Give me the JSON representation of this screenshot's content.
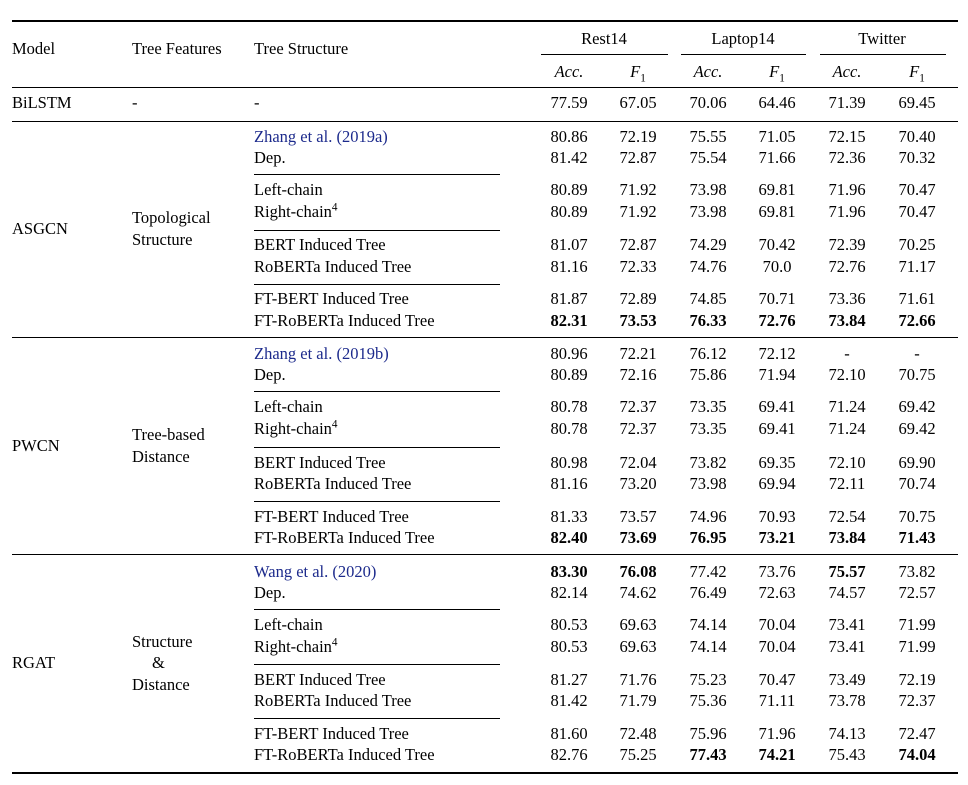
{
  "header": {
    "model": "Model",
    "features": "Tree Features",
    "structure": "Tree Structure",
    "datasets": [
      "Rest14",
      "Laptop14",
      "Twitter"
    ],
    "metrics": [
      "Acc.",
      "F",
      "1"
    ]
  },
  "bilstm": {
    "model": "BiLSTM",
    "features": "-",
    "structure": "-",
    "values": [
      "77.59",
      "67.05",
      "70.06",
      "64.46",
      "71.39",
      "69.45"
    ]
  },
  "groups": [
    {
      "model": "ASGCN",
      "features": [
        "Topological",
        "Structure"
      ],
      "rows": [
        {
          "author": "Zhang et al.",
          "open": " (",
          "year": "2019a",
          "close": ")",
          "values": [
            "80.86",
            "72.19",
            "75.55",
            "71.05",
            "72.15",
            "70.40"
          ]
        },
        {
          "label": "Dep.",
          "values": [
            "81.42",
            "72.87",
            "75.54",
            "71.66",
            "72.36",
            "70.32"
          ]
        },
        {
          "label": "Left-chain",
          "values": [
            "80.89",
            "71.92",
            "73.98",
            "69.81",
            "71.96",
            "70.47"
          ]
        },
        {
          "label": "Right-chain",
          "footnote": "4",
          "values": [
            "80.89",
            "71.92",
            "73.98",
            "69.81",
            "71.96",
            "70.47"
          ]
        },
        {
          "label": "BERT Induced Tree",
          "values": [
            "81.07",
            "72.87",
            "74.29",
            "70.42",
            "72.39",
            "70.25"
          ]
        },
        {
          "label": "RoBERTa Induced Tree",
          "values": [
            "81.16",
            "72.33",
            "74.76",
            "70.0",
            "72.76",
            "71.17"
          ]
        },
        {
          "label": "FT-BERT Induced Tree",
          "values": [
            "81.87",
            "72.89",
            "74.85",
            "70.71",
            "73.36",
            "71.61"
          ]
        },
        {
          "label": "FT-RoBERTa Induced Tree",
          "values": [
            "82.31",
            "73.53",
            "76.33",
            "72.76",
            "73.84",
            "72.66"
          ],
          "bold": [
            true,
            true,
            true,
            true,
            true,
            true
          ]
        }
      ]
    },
    {
      "model": "PWCN",
      "features": [
        "Tree-based",
        "Distance"
      ],
      "rows": [
        {
          "author": "Zhang et al.",
          "open": " (",
          "year": "2019b",
          "close": ")",
          "values": [
            "80.96",
            "72.21",
            "76.12",
            "72.12",
            "-",
            "-"
          ]
        },
        {
          "label": "Dep.",
          "values": [
            "80.89",
            "72.16",
            "75.86",
            "71.94",
            "72.10",
            "70.75"
          ]
        },
        {
          "label": "Left-chain",
          "values": [
            "80.78",
            "72.37",
            "73.35",
            "69.41",
            "71.24",
            "69.42"
          ]
        },
        {
          "label": "Right-chain",
          "footnote": "4",
          "values": [
            "80.78",
            "72.37",
            "73.35",
            "69.41",
            "71.24",
            "69.42"
          ]
        },
        {
          "label": "BERT Induced Tree",
          "values": [
            "80.98",
            "72.04",
            "73.82",
            "69.35",
            "72.10",
            "69.90"
          ]
        },
        {
          "label": "RoBERTa Induced Tree",
          "values": [
            "81.16",
            "73.20",
            "73.98",
            "69.94",
            "72.11",
            "70.74"
          ]
        },
        {
          "label": "FT-BERT Induced Tree",
          "values": [
            "81.33",
            "73.57",
            "74.96",
            "70.93",
            "72.54",
            "70.75"
          ]
        },
        {
          "label": "FT-RoBERTa Induced Tree",
          "values": [
            "82.40",
            "73.69",
            "76.95",
            "73.21",
            "73.84",
            "71.43"
          ],
          "bold": [
            true,
            true,
            true,
            true,
            true,
            true
          ]
        }
      ]
    },
    {
      "model": "RGAT",
      "features": [
        "Structure",
        "&",
        "Distance"
      ],
      "rows": [
        {
          "author": "Wang et al.",
          "open": " (",
          "year": "2020",
          "close": ")",
          "values": [
            "83.30",
            "76.08",
            "77.42",
            "73.76",
            "75.57",
            "73.82"
          ],
          "bold": [
            true,
            true,
            false,
            false,
            true,
            false
          ]
        },
        {
          "label": "Dep.",
          "values": [
            "82.14",
            "74.62",
            "76.49",
            "72.63",
            "74.57",
            "72.57"
          ]
        },
        {
          "label": "Left-chain",
          "values": [
            "80.53",
            "69.63",
            "74.14",
            "70.04",
            "73.41",
            "71.99"
          ]
        },
        {
          "label": "Right-chain",
          "footnote": "4",
          "values": [
            "80.53",
            "69.63",
            "74.14",
            "70.04",
            "73.41",
            "71.99"
          ]
        },
        {
          "label": "BERT Induced Tree",
          "values": [
            "81.27",
            "71.76",
            "75.23",
            "70.47",
            "73.49",
            "72.19"
          ]
        },
        {
          "label": "RoBERTa Induced Tree",
          "values": [
            "81.42",
            "71.79",
            "75.36",
            "71.11",
            "73.78",
            "72.37"
          ]
        },
        {
          "label": "FT-BERT Induced Tree",
          "values": [
            "81.60",
            "72.48",
            "75.96",
            "71.96",
            "74.13",
            "72.47"
          ]
        },
        {
          "label": "FT-RoBERTa Induced Tree",
          "values": [
            "82.76",
            "75.25",
            "77.43",
            "74.21",
            "75.43",
            "74.04"
          ],
          "bold": [
            false,
            false,
            true,
            true,
            false,
            true
          ]
        }
      ]
    }
  ]
}
